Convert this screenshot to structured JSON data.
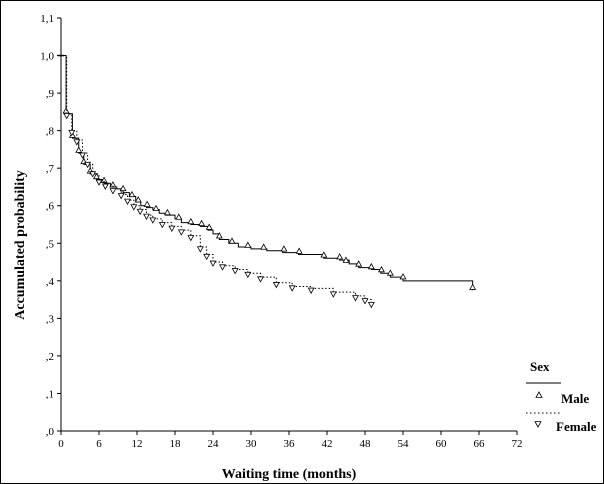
{
  "chart_data": {
    "type": "line",
    "title": "",
    "xlabel": "Waiting time (months)",
    "ylabel": "Accumulated probability",
    "xlim": [
      0,
      72
    ],
    "ylim": [
      0,
      1.1
    ],
    "x_ticks": [
      0,
      6,
      12,
      18,
      24,
      30,
      36,
      42,
      48,
      54,
      60,
      66,
      72
    ],
    "x_tick_labels": [
      "0",
      "6",
      "12",
      "18",
      "24",
      "30",
      "36",
      "42",
      "48",
      "54",
      "60",
      "66",
      "72"
    ],
    "y_ticks": [
      0,
      0.1,
      0.2,
      0.3,
      0.4,
      0.5,
      0.6,
      0.7,
      0.8,
      0.9,
      1.0,
      1.1
    ],
    "y_tick_labels": [
      ",0",
      ",1",
      ",2",
      ",3",
      ",4",
      ",5",
      ",6",
      ",7",
      ",8",
      ",9",
      "1,0",
      "1,1"
    ],
    "grid": false,
    "legend": {
      "title": "Sex",
      "placement": "right"
    },
    "series": [
      {
        "name": "Male",
        "line_style": "solid",
        "marker": "triangle-up",
        "color": "#000000",
        "steps": [
          [
            0,
            1.0
          ],
          [
            0.8,
            0.845
          ],
          [
            1.8,
            0.78
          ],
          [
            2.8,
            0.74
          ],
          [
            3.6,
            0.71
          ],
          [
            4.6,
            0.685
          ],
          [
            5.6,
            0.67
          ],
          [
            6.8,
            0.66
          ],
          [
            7.8,
            0.65
          ],
          [
            8.8,
            0.645
          ],
          [
            9.8,
            0.635
          ],
          [
            10.8,
            0.625
          ],
          [
            11.8,
            0.61
          ],
          [
            12.6,
            0.6
          ],
          [
            13.5,
            0.595
          ],
          [
            14.5,
            0.59
          ],
          [
            15.5,
            0.58
          ],
          [
            16.5,
            0.575
          ],
          [
            18.0,
            0.565
          ],
          [
            19.0,
            0.555
          ],
          [
            20.5,
            0.55
          ],
          [
            22.0,
            0.545
          ],
          [
            23.2,
            0.535
          ],
          [
            24.0,
            0.525
          ],
          [
            25.0,
            0.51
          ],
          [
            26.5,
            0.5
          ],
          [
            28.0,
            0.49
          ],
          [
            30.0,
            0.485
          ],
          [
            32.5,
            0.48
          ],
          [
            35.0,
            0.475
          ],
          [
            37.5,
            0.47
          ],
          [
            41.5,
            0.46
          ],
          [
            44.0,
            0.455
          ],
          [
            45.5,
            0.445
          ],
          [
            47.0,
            0.435
          ],
          [
            49.0,
            0.43
          ],
          [
            50.5,
            0.42
          ],
          [
            52.0,
            0.41
          ],
          [
            54.0,
            0.4
          ],
          [
            65.0,
            0.375
          ]
        ],
        "markers": [
          [
            0.8,
            0.845
          ],
          [
            1.8,
            0.78
          ],
          [
            2.8,
            0.74
          ],
          [
            3.6,
            0.71
          ],
          [
            4.6,
            0.685
          ],
          [
            5.6,
            0.67
          ],
          [
            6.8,
            0.66
          ],
          [
            8.2,
            0.648
          ],
          [
            9.8,
            0.638
          ],
          [
            11.2,
            0.622
          ],
          [
            12.2,
            0.608
          ],
          [
            13.6,
            0.596
          ],
          [
            15.0,
            0.585
          ],
          [
            16.8,
            0.574
          ],
          [
            18.6,
            0.562
          ],
          [
            20.5,
            0.55
          ],
          [
            22.2,
            0.545
          ],
          [
            23.4,
            0.535
          ],
          [
            25.0,
            0.512
          ],
          [
            27.0,
            0.498
          ],
          [
            29.5,
            0.487
          ],
          [
            32.0,
            0.482
          ],
          [
            35.2,
            0.477
          ],
          [
            37.6,
            0.471
          ],
          [
            41.5,
            0.461
          ],
          [
            44.0,
            0.456
          ],
          [
            45.0,
            0.447
          ],
          [
            47.0,
            0.437
          ],
          [
            49.0,
            0.43
          ],
          [
            50.6,
            0.422
          ],
          [
            52.0,
            0.413
          ],
          [
            54.0,
            0.403
          ],
          [
            65.0,
            0.375
          ]
        ]
      },
      {
        "name": "Female",
        "line_style": "dotted",
        "marker": "triangle-down",
        "color": "#000000",
        "steps": [
          [
            0,
            1.0
          ],
          [
            0.9,
            0.845
          ],
          [
            1.7,
            0.8
          ],
          [
            2.5,
            0.775
          ],
          [
            3.4,
            0.74
          ],
          [
            4.2,
            0.71
          ],
          [
            5.0,
            0.685
          ],
          [
            6.0,
            0.665
          ],
          [
            7.0,
            0.655
          ],
          [
            8.2,
            0.645
          ],
          [
            9.5,
            0.63
          ],
          [
            10.5,
            0.615
          ],
          [
            11.5,
            0.6
          ],
          [
            12.5,
            0.59
          ],
          [
            13.5,
            0.575
          ],
          [
            14.5,
            0.565
          ],
          [
            16.0,
            0.555
          ],
          [
            17.5,
            0.545
          ],
          [
            19.0,
            0.535
          ],
          [
            20.5,
            0.52
          ],
          [
            22.0,
            0.49
          ],
          [
            23.0,
            0.47
          ],
          [
            24.0,
            0.45
          ],
          [
            25.5,
            0.44
          ],
          [
            27.5,
            0.43
          ],
          [
            29.5,
            0.42
          ],
          [
            31.5,
            0.41
          ],
          [
            34.0,
            0.395
          ],
          [
            36.5,
            0.385
          ],
          [
            39.5,
            0.38
          ],
          [
            43.0,
            0.37
          ],
          [
            46.5,
            0.36
          ],
          [
            48.0,
            0.35
          ],
          [
            49.0,
            0.34
          ]
        ],
        "markers": [
          [
            0.9,
            0.845
          ],
          [
            1.7,
            0.8
          ],
          [
            2.5,
            0.775
          ],
          [
            3.4,
            0.74
          ],
          [
            4.2,
            0.715
          ],
          [
            5.0,
            0.69
          ],
          [
            6.0,
            0.668
          ],
          [
            7.0,
            0.657
          ],
          [
            8.2,
            0.645
          ],
          [
            9.5,
            0.632
          ],
          [
            10.5,
            0.617
          ],
          [
            11.5,
            0.602
          ],
          [
            12.5,
            0.59
          ],
          [
            13.5,
            0.577
          ],
          [
            14.5,
            0.567
          ],
          [
            16.0,
            0.555
          ],
          [
            17.5,
            0.545
          ],
          [
            19.0,
            0.535
          ],
          [
            20.5,
            0.52
          ],
          [
            22.0,
            0.49
          ],
          [
            23.0,
            0.47
          ],
          [
            24.0,
            0.452
          ],
          [
            25.5,
            0.442
          ],
          [
            27.5,
            0.432
          ],
          [
            29.5,
            0.422
          ],
          [
            31.5,
            0.41
          ],
          [
            34.0,
            0.395
          ],
          [
            36.5,
            0.386
          ],
          [
            39.5,
            0.38
          ],
          [
            43.0,
            0.37
          ],
          [
            46.5,
            0.36
          ],
          [
            48.0,
            0.352
          ],
          [
            49.0,
            0.342
          ]
        ]
      }
    ]
  }
}
